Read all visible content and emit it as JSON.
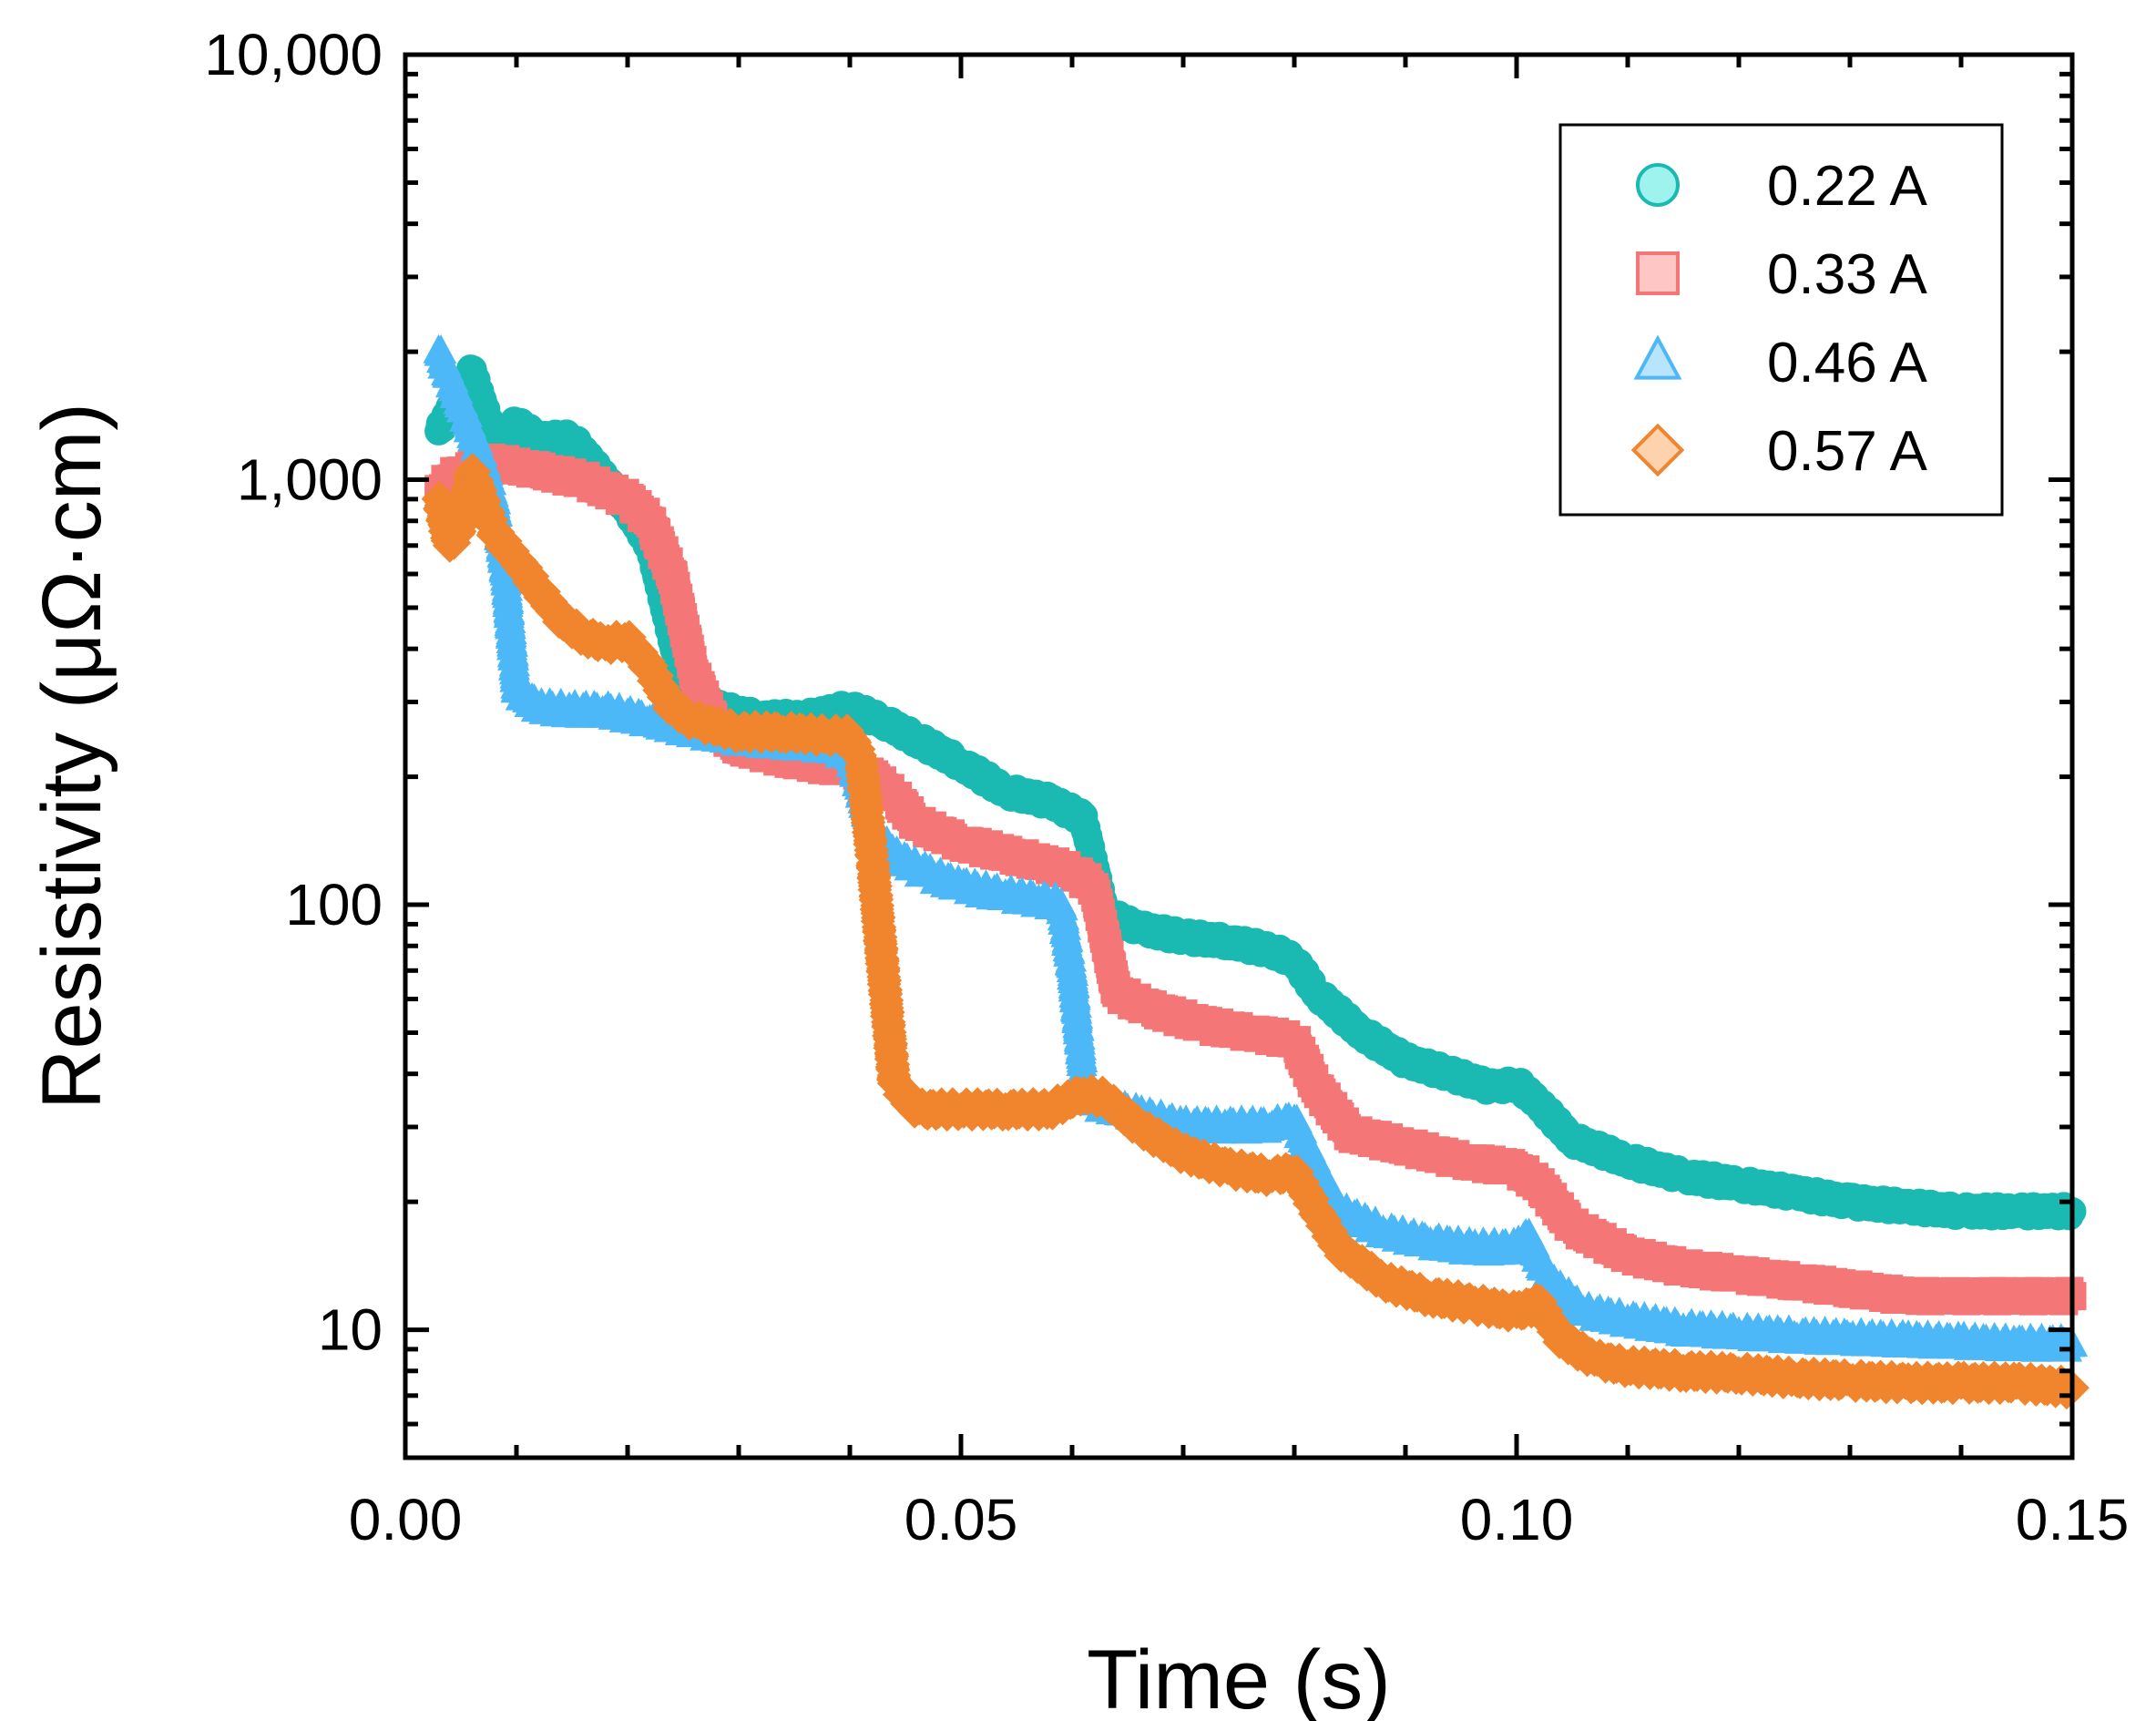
{
  "chart_data": {
    "type": "scatter",
    "title": "",
    "xlabel": "Time (s)",
    "ylabel": "Resistivity (μΩ·cm)",
    "xlim": [
      0,
      0.15
    ],
    "ylim": [
      5,
      10000
    ],
    "yscale": "log",
    "x_ticks": [
      0.0,
      0.05,
      0.1,
      0.15
    ],
    "x_tick_labels": [
      "0.00",
      "0.05",
      "0.10",
      "0.15"
    ],
    "y_ticks": [
      10,
      100,
      1000,
      10000
    ],
    "y_tick_labels": [
      "10",
      "100",
      "1,000",
      "10,000"
    ],
    "legend_position": "top-right",
    "series": [
      {
        "name": "0.22 A",
        "marker": "circle",
        "color": "#1ab9b1",
        "fill": "#9ff3ef",
        "points": [
          [
            0.003,
            1300
          ],
          [
            0.006,
            1800
          ],
          [
            0.008,
            1250
          ],
          [
            0.01,
            1350
          ],
          [
            0.012,
            1250
          ],
          [
            0.015,
            1250
          ],
          [
            0.018,
            1000
          ],
          [
            0.02,
            850
          ],
          [
            0.022,
            700
          ],
          [
            0.025,
            330
          ],
          [
            0.028,
            290
          ],
          [
            0.032,
            275
          ],
          [
            0.036,
            275
          ],
          [
            0.04,
            290
          ],
          [
            0.043,
            270
          ],
          [
            0.046,
            245
          ],
          [
            0.05,
            215
          ],
          [
            0.054,
            185
          ],
          [
            0.058,
            175
          ],
          [
            0.061,
            160
          ],
          [
            0.063,
            95
          ],
          [
            0.066,
            88
          ],
          [
            0.07,
            84
          ],
          [
            0.074,
            82
          ],
          [
            0.078,
            78
          ],
          [
            0.08,
            74
          ],
          [
            0.082,
            62
          ],
          [
            0.086,
            50
          ],
          [
            0.09,
            43
          ],
          [
            0.094,
            40
          ],
          [
            0.098,
            37
          ],
          [
            0.1,
            38
          ],
          [
            0.102,
            34
          ],
          [
            0.105,
            28
          ],
          [
            0.11,
            25
          ],
          [
            0.115,
            23
          ],
          [
            0.12,
            22
          ],
          [
            0.125,
            21
          ],
          [
            0.13,
            20
          ],
          [
            0.135,
            19.5
          ],
          [
            0.14,
            19
          ],
          [
            0.145,
            19
          ],
          [
            0.15,
            19
          ]
        ]
      },
      {
        "name": "0.33 A",
        "marker": "square",
        "color": "#f47676",
        "fill": "#ffc6c6",
        "points": [
          [
            0.003,
            950
          ],
          [
            0.005,
            1050
          ],
          [
            0.008,
            1100
          ],
          [
            0.012,
            1050
          ],
          [
            0.016,
            1000
          ],
          [
            0.02,
            900
          ],
          [
            0.022,
            800
          ],
          [
            0.024,
            600
          ],
          [
            0.026,
            350
          ],
          [
            0.028,
            260
          ],
          [
            0.03,
            235
          ],
          [
            0.033,
            225
          ],
          [
            0.036,
            215
          ],
          [
            0.04,
            210
          ],
          [
            0.042,
            200
          ],
          [
            0.044,
            180
          ],
          [
            0.046,
            155
          ],
          [
            0.05,
            140
          ],
          [
            0.055,
            130
          ],
          [
            0.06,
            120
          ],
          [
            0.062,
            110
          ],
          [
            0.064,
            62
          ],
          [
            0.067,
            57
          ],
          [
            0.072,
            52
          ],
          [
            0.076,
            50
          ],
          [
            0.08,
            48
          ],
          [
            0.082,
            37
          ],
          [
            0.085,
            29
          ],
          [
            0.09,
            27
          ],
          [
            0.095,
            25
          ],
          [
            0.1,
            24
          ],
          [
            0.102,
            22
          ],
          [
            0.105,
            17.5
          ],
          [
            0.11,
            15
          ],
          [
            0.115,
            14
          ],
          [
            0.12,
            13.5
          ],
          [
            0.125,
            13
          ],
          [
            0.13,
            12.5
          ],
          [
            0.135,
            12
          ],
          [
            0.14,
            12
          ],
          [
            0.145,
            12
          ],
          [
            0.15,
            12
          ]
        ]
      },
      {
        "name": "0.46 A",
        "marker": "triangle",
        "color": "#4db8f8",
        "fill": "#b8e4fd",
        "points": [
          [
            0.003,
            2000
          ],
          [
            0.005,
            1500
          ],
          [
            0.007,
            1100
          ],
          [
            0.008,
            900
          ],
          [
            0.009,
            600
          ],
          [
            0.01,
            320
          ],
          [
            0.012,
            290
          ],
          [
            0.015,
            285
          ],
          [
            0.018,
            285
          ],
          [
            0.022,
            270
          ],
          [
            0.026,
            255
          ],
          [
            0.03,
            245
          ],
          [
            0.034,
            240
          ],
          [
            0.038,
            235
          ],
          [
            0.04,
            225
          ],
          [
            0.042,
            150
          ],
          [
            0.044,
            130
          ],
          [
            0.047,
            118
          ],
          [
            0.05,
            110
          ],
          [
            0.054,
            105
          ],
          [
            0.057,
            102
          ],
          [
            0.059,
            100
          ],
          [
            0.06,
            70
          ],
          [
            0.061,
            40
          ],
          [
            0.062,
            34
          ],
          [
            0.066,
            32
          ],
          [
            0.07,
            30
          ],
          [
            0.074,
            30
          ],
          [
            0.078,
            30
          ],
          [
            0.08,
            31
          ],
          [
            0.082,
            24
          ],
          [
            0.084,
            19
          ],
          [
            0.088,
            17
          ],
          [
            0.092,
            16
          ],
          [
            0.096,
            15.5
          ],
          [
            0.1,
            15.5
          ],
          [
            0.101,
            16.5
          ],
          [
            0.103,
            13
          ],
          [
            0.106,
            11
          ],
          [
            0.11,
            10.5
          ],
          [
            0.115,
            10
          ],
          [
            0.12,
            9.8
          ],
          [
            0.125,
            9.6
          ],
          [
            0.13,
            9.5
          ],
          [
            0.135,
            9.4
          ],
          [
            0.14,
            9.3
          ],
          [
            0.145,
            9.2
          ],
          [
            0.15,
            9.2
          ]
        ]
      },
      {
        "name": "0.57 A",
        "marker": "diamond",
        "color": "#f0852e",
        "fill": "#fdd2ac",
        "points": [
          [
            0.003,
            900
          ],
          [
            0.004,
            700
          ],
          [
            0.005,
            780
          ],
          [
            0.006,
            1050
          ],
          [
            0.008,
            750
          ],
          [
            0.01,
            650
          ],
          [
            0.012,
            550
          ],
          [
            0.014,
            470
          ],
          [
            0.016,
            430
          ],
          [
            0.018,
            410
          ],
          [
            0.02,
            420
          ],
          [
            0.022,
            360
          ],
          [
            0.024,
            290
          ],
          [
            0.026,
            270
          ],
          [
            0.03,
            255
          ],
          [
            0.034,
            255
          ],
          [
            0.038,
            250
          ],
          [
            0.04,
            250
          ],
          [
            0.041,
            220
          ],
          [
            0.042,
            130
          ],
          [
            0.043,
            70
          ],
          [
            0.044,
            38
          ],
          [
            0.046,
            33
          ],
          [
            0.05,
            33
          ],
          [
            0.054,
            33
          ],
          [
            0.058,
            33
          ],
          [
            0.061,
            36
          ],
          [
            0.063,
            35
          ],
          [
            0.066,
            30
          ],
          [
            0.07,
            26
          ],
          [
            0.074,
            24
          ],
          [
            0.078,
            23
          ],
          [
            0.08,
            23.5
          ],
          [
            0.082,
            19
          ],
          [
            0.084,
            15.5
          ],
          [
            0.088,
            13
          ],
          [
            0.092,
            12
          ],
          [
            0.096,
            11.5
          ],
          [
            0.1,
            11
          ],
          [
            0.102,
            11.5
          ],
          [
            0.104,
            9.5
          ],
          [
            0.107,
            8.5
          ],
          [
            0.11,
            8.2
          ],
          [
            0.115,
            8
          ],
          [
            0.12,
            7.9
          ],
          [
            0.125,
            7.7
          ],
          [
            0.13,
            7.6
          ],
          [
            0.135,
            7.5
          ],
          [
            0.14,
            7.5
          ],
          [
            0.145,
            7.5
          ],
          [
            0.15,
            7.3
          ]
        ]
      }
    ]
  }
}
